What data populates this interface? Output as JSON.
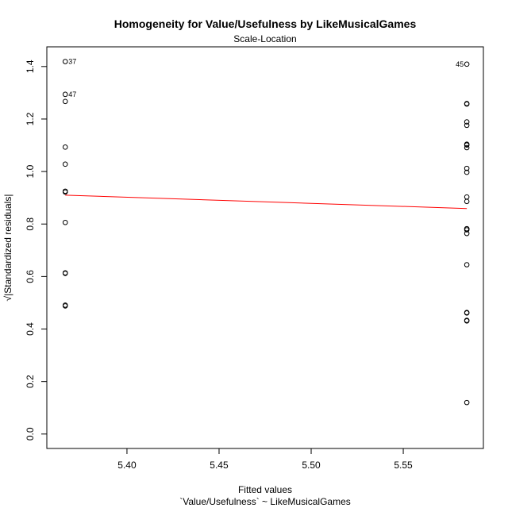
{
  "chart_data": {
    "type": "scatter",
    "title": "Homogeneity for Value/Usefulness by LikeMusicalGames",
    "subtitle": "Scale-Location",
    "xlabel": "Fitted values",
    "xlabel2": "`Value/Usefulness` ~ LikeMusicalGames",
    "ylabel": "√|Standardized residuals|",
    "xlim": [
      5.3565,
      5.5935
    ],
    "ylim": [
      -0.055,
      1.475
    ],
    "xticks": [
      5.4,
      5.45,
      5.5,
      5.55
    ],
    "xtick_labels": [
      "5.40",
      "5.45",
      "5.50",
      "5.55"
    ],
    "yticks": [
      0.0,
      0.2,
      0.4,
      0.6,
      0.8,
      1.0,
      1.2,
      1.4
    ],
    "ytick_labels": [
      "0.0",
      "0.2",
      "0.4",
      "0.6",
      "0.8",
      "1.0",
      "1.2",
      "1.4"
    ],
    "series": [
      {
        "name": "group-1",
        "x": [
          5.3665,
          5.3665,
          5.3665,
          5.3665,
          5.3665,
          5.3665,
          5.3665,
          5.3665,
          5.3665,
          5.3665,
          5.3665,
          5.3665
        ],
        "y": [
          1.419,
          1.294,
          1.267,
          1.093,
          1.028,
          0.925,
          0.922,
          0.806,
          0.614,
          0.612,
          0.491,
          0.488
        ]
      },
      {
        "name": "group-2",
        "x": [
          5.5845,
          5.5845,
          5.5845,
          5.5845,
          5.5845,
          5.5845,
          5.5845,
          5.5845,
          5.5845,
          5.5845,
          5.5845,
          5.5845,
          5.5845,
          5.5845,
          5.5845,
          5.5845,
          5.5845,
          5.5845,
          5.5845,
          5.5845,
          5.5845,
          5.5845
        ],
        "y": [
          1.409,
          1.259,
          1.257,
          1.189,
          1.176,
          1.104,
          1.101,
          1.091,
          1.012,
          0.997,
          0.903,
          0.886,
          0.782,
          0.778,
          0.764,
          0.645,
          0.463,
          0.461,
          0.433,
          0.431,
          0.12,
          0.782
        ]
      }
    ],
    "point_labels": [
      {
        "text": "37",
        "x": 5.3665,
        "y": 1.419,
        "side": "right"
      },
      {
        "text": "47",
        "x": 5.3665,
        "y": 1.294,
        "side": "right"
      },
      {
        "text": "45",
        "x": 5.5845,
        "y": 1.409,
        "side": "left"
      }
    ],
    "smoother": {
      "x": [
        5.3665,
        5.5845
      ],
      "y": [
        0.91,
        0.859
      ],
      "color": "#ff0000"
    }
  }
}
